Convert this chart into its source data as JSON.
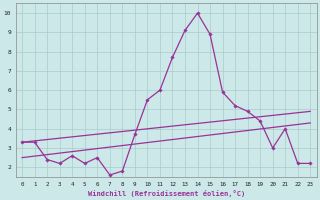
{
  "xlabel": "Windchill (Refroidissement éolien,°C)",
  "bg_color": "#cce8e8",
  "line_color": "#993399",
  "grid_color": "#aacccc",
  "x_main": [
    0,
    1,
    2,
    3,
    4,
    5,
    6,
    7,
    8,
    9,
    10,
    11,
    12,
    13,
    14,
    15,
    16,
    17,
    18,
    19,
    20,
    21,
    22,
    23
  ],
  "y_main": [
    3.3,
    3.3,
    2.4,
    2.2,
    2.6,
    2.2,
    2.5,
    1.6,
    1.8,
    3.7,
    5.5,
    6.0,
    7.7,
    9.1,
    10.0,
    8.9,
    5.9,
    5.2,
    4.9,
    4.4,
    3.0,
    4.0,
    2.2,
    2.2
  ],
  "y_trend1_start": 3.3,
  "y_trend1_end": 4.9,
  "y_trend2_start": 2.5,
  "y_trend2_end": 4.3,
  "ylim": [
    1.5,
    10.5
  ],
  "xlim": [
    -0.5,
    23.5
  ],
  "yticks": [
    2,
    3,
    4,
    5,
    6,
    7,
    8,
    9,
    10
  ],
  "xticks": [
    0,
    1,
    2,
    3,
    4,
    5,
    6,
    7,
    8,
    9,
    10,
    11,
    12,
    13,
    14,
    15,
    16,
    17,
    18,
    19,
    20,
    21,
    22,
    23
  ]
}
